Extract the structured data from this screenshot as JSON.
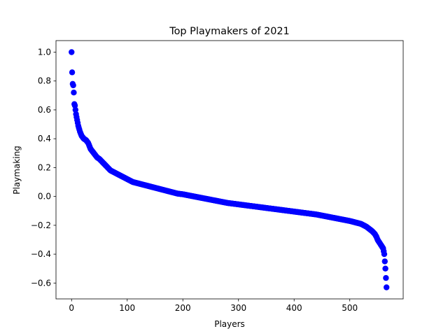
{
  "chart_data": {
    "type": "scatter",
    "title": "Top Playmakers of 2021",
    "xlabel": "Players",
    "ylabel": "Playmaking",
    "xlim": [
      -28,
      596
    ],
    "ylim": [
      -0.71,
      1.08
    ],
    "xticks": [
      0,
      100,
      200,
      300,
      400,
      500
    ],
    "xtick_labels": [
      "0",
      "100",
      "200",
      "300",
      "400",
      "500"
    ],
    "yticks": [
      -0.6,
      -0.4,
      -0.2,
      0.0,
      0.2,
      0.4,
      0.6,
      0.8,
      1.0
    ],
    "ytick_labels": [
      "−0.6",
      "−0.4",
      "−0.2",
      "0.0",
      "0.2",
      "0.4",
      "0.6",
      "0.8",
      "1.0"
    ],
    "grid": false,
    "marker_color": "#0000ff",
    "n_points": 567,
    "curve_anchors": {
      "x": [
        0,
        1,
        2,
        3,
        4,
        5,
        6,
        7,
        8,
        10,
        12,
        15,
        18,
        22,
        26,
        30,
        34,
        38,
        42,
        46,
        50,
        55,
        60,
        65,
        70,
        75,
        80,
        90,
        100,
        110,
        120,
        130,
        140,
        150,
        160,
        170,
        180,
        190,
        200,
        220,
        240,
        260,
        280,
        300,
        320,
        340,
        360,
        380,
        400,
        420,
        440,
        460,
        480,
        500,
        520,
        530,
        540,
        545,
        548,
        550,
        555,
        560,
        562,
        564,
        566
      ],
      "y": [
        1.0,
        0.86,
        0.78,
        0.77,
        0.72,
        0.64,
        0.63,
        0.6,
        0.57,
        0.53,
        0.49,
        0.45,
        0.42,
        0.4,
        0.39,
        0.37,
        0.33,
        0.31,
        0.29,
        0.27,
        0.26,
        0.24,
        0.22,
        0.2,
        0.18,
        0.17,
        0.16,
        0.14,
        0.12,
        0.1,
        0.09,
        0.08,
        0.07,
        0.06,
        0.05,
        0.04,
        0.03,
        0.02,
        0.015,
        0.0,
        -0.015,
        -0.03,
        -0.045,
        -0.055,
        -0.065,
        -0.075,
        -0.085,
        -0.095,
        -0.105,
        -0.115,
        -0.125,
        -0.14,
        -0.155,
        -0.17,
        -0.19,
        -0.21,
        -0.24,
        -0.26,
        -0.28,
        -0.3,
        -0.33,
        -0.36,
        -0.4,
        -0.5,
        -0.63
      ]
    }
  }
}
